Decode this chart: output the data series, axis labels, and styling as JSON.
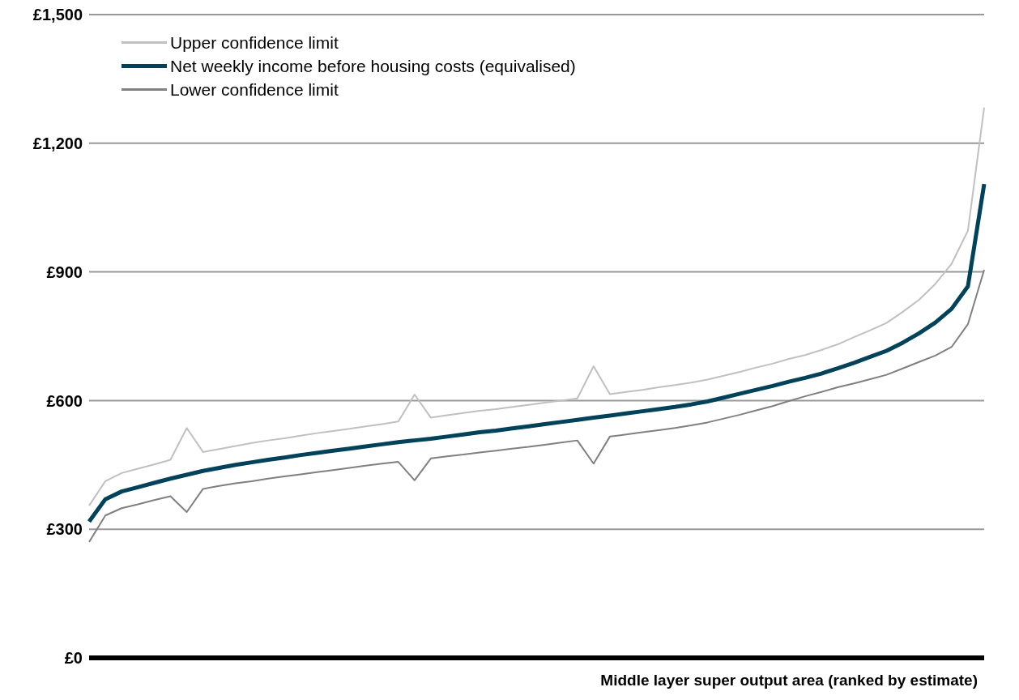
{
  "chart_data": {
    "type": "line",
    "xlabel": "Middle layer super output area (ranked by estimate)",
    "categories": [
      null,
      null,
      null,
      null,
      null,
      null,
      null,
      null,
      null,
      null,
      null,
      null,
      null,
      null,
      null,
      null,
      null,
      null,
      null,
      null,
      null,
      null,
      null,
      null,
      null,
      null,
      null,
      null,
      null,
      null,
      null,
      null,
      null,
      null,
      null,
      null,
      null,
      null,
      null,
      null,
      null,
      null,
      null,
      null,
      null,
      null,
      null,
      null,
      null,
      null,
      null,
      null,
      null,
      null,
      null,
      null
    ],
    "series": [
      {
        "name": "Upper confidence limit",
        "color": "#c0c0c0",
        "values": [
          355,
          412,
          431,
          441,
          451,
          462,
          536,
          480,
          487,
          494,
          501,
          507,
          512,
          518,
          524,
          529,
          534,
          540,
          545,
          551,
          614,
          560,
          566,
          571,
          576,
          580,
          585,
          590,
          595,
          600,
          605,
          680,
          615,
          620,
          625,
          631,
          636,
          642,
          649,
          658,
          667,
          677,
          686,
          697,
          706,
          718,
          731,
          748,
          764,
          781,
          807,
          835,
          872,
          919,
          996,
          1283
        ]
      },
      {
        "name": "Net weekly income before housing costs (equivalised)",
        "color": "#00425a",
        "values": [
          318,
          370,
          388,
          398,
          408,
          418,
          427,
          436,
          443,
          450,
          456,
          462,
          467,
          473,
          478,
          483,
          488,
          493,
          498,
          503,
          507,
          511,
          516,
          521,
          526,
          530,
          535,
          540,
          545,
          550,
          555,
          560,
          565,
          570,
          575,
          580,
          585,
          591,
          598,
          607,
          616,
          625,
          634,
          644,
          653,
          663,
          675,
          688,
          702,
          716,
          735,
          757,
          782,
          814,
          866,
          1105
        ]
      },
      {
        "name": "Lower confidence limit",
        "color": "#808080",
        "values": [
          270,
          332,
          349,
          358,
          368,
          377,
          340,
          394,
          401,
          407,
          412,
          418,
          423,
          428,
          433,
          438,
          443,
          448,
          453,
          457,
          414,
          465,
          470,
          474,
          479,
          483,
          488,
          492,
          497,
          502,
          507,
          453,
          516,
          521,
          526,
          531,
          536,
          542,
          549,
          558,
          567,
          577,
          587,
          599,
          610,
          620,
          631,
          640,
          650,
          660,
          675,
          690,
          705,
          725,
          778,
          905
        ]
      }
    ],
    "ylim": [
      0,
      1500
    ],
    "yticks": [
      {
        "value": 0,
        "label": "£0"
      },
      {
        "value": 300,
        "label": "£300"
      },
      {
        "value": 600,
        "label": "£600"
      },
      {
        "value": 900,
        "label": "£900"
      },
      {
        "value": 1200,
        "label": "£1,200"
      },
      {
        "value": 1500,
        "label": "£1,500"
      }
    ],
    "grid": "y",
    "legend": "top left"
  }
}
